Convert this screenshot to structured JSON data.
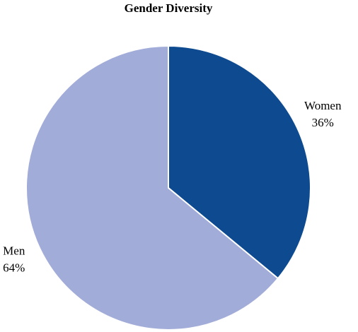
{
  "chart_data": {
    "type": "pie",
    "title": "Gender Diversity",
    "categories": [
      "Women",
      "Men"
    ],
    "values": [
      36,
      64
    ],
    "value_labels": [
      "36%",
      "64%"
    ],
    "colors": [
      "#0d4a8f",
      "#a2acd8"
    ]
  }
}
